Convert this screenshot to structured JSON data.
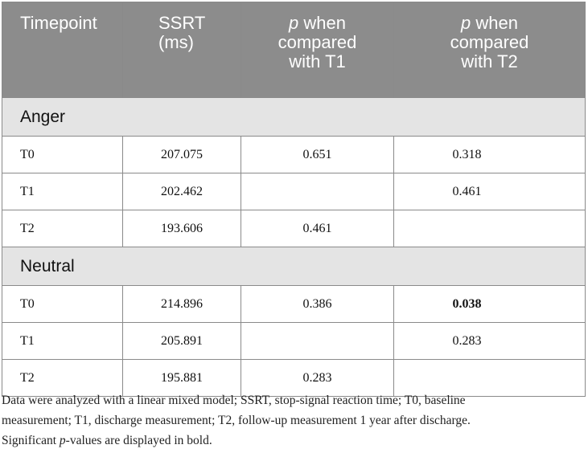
{
  "header": {
    "col1": "Timepoint",
    "col2_line1": "SSRT",
    "col2_line2": "(ms)",
    "col3_p": "p",
    "col3_rest1": " when",
    "col3_line2": "compared",
    "col3_line3": "with T1",
    "col4_p": "p",
    "col4_rest1": " when",
    "col4_line2": "compared",
    "col4_line3": "with T2"
  },
  "sections": [
    {
      "title": "Anger",
      "rows": [
        {
          "timepoint": "T0",
          "ssrt": "207.075",
          "p_t1": "0.651",
          "p_t2": "0.318"
        },
        {
          "timepoint": "T1",
          "ssrt": "202.462",
          "p_t1": "",
          "p_t2": "0.461"
        },
        {
          "timepoint": "T2",
          "ssrt": "193.606",
          "p_t1": "0.461",
          "p_t2": ""
        }
      ]
    },
    {
      "title": "Neutral",
      "rows": [
        {
          "timepoint": "T0",
          "ssrt": "214.896",
          "p_t1": "0.386",
          "p_t2": "0.038"
        },
        {
          "timepoint": "T1",
          "ssrt": "205.891",
          "p_t1": "",
          "p_t2": "0.283"
        },
        {
          "timepoint": "T2",
          "ssrt": "195.881",
          "p_t1": "0.283",
          "p_t2": ""
        }
      ]
    }
  ],
  "footnote": {
    "line1": "Data were analyzed with a linear mixed model; SSRT, stop-signal reaction time; T0, baseline",
    "line2": "measurement; T1, discharge measurement; T2, follow-up measurement 1 year after discharge.",
    "line3_a": "Significant ",
    "line3_p": "p",
    "line3_b": "-values are displayed in bold."
  }
}
